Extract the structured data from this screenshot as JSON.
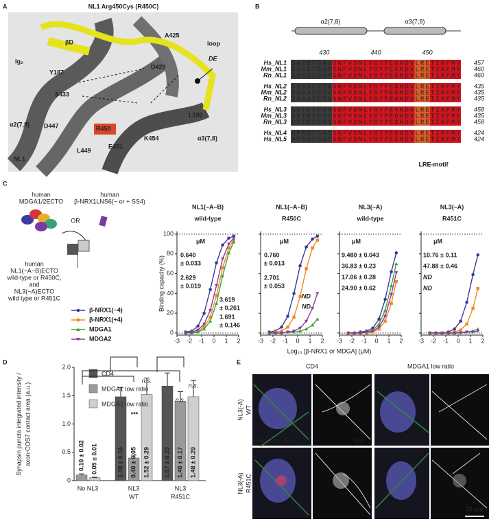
{
  "panel_letters": [
    "A",
    "B",
    "C",
    "D",
    "E"
  ],
  "panel_a": {
    "title": "NL1 Arg450Cys (R450C)",
    "labels": [
      "βD",
      "Ig₂",
      "Y187",
      "D429",
      "A425",
      "loop",
      "DE",
      "S433",
      "L190",
      "α2(7,8)",
      "D447",
      "R450",
      "E451",
      "K454",
      "L449",
      "NL1",
      "α3(7,8)"
    ]
  },
  "panel_b": {
    "helices": [
      "α2(7,8)",
      "α3(7,8)"
    ],
    "positions": [
      430,
      440,
      450
    ],
    "motif": "LRE-motif",
    "rows": [
      {
        "name": "Hs_NL1",
        "sequence": "SASDFDAVSNFVDNLYGYPEGKDVLRETIKFMY",
        "end": 457
      },
      {
        "name": "Mm_NL1",
        "sequence": "SASDFDAVSNFVDNLYGYPEGKDVLRETIKFMY",
        "end": 460
      },
      {
        "name": "Rn_NL1",
        "sequence": "SASDFDAVSNFVDNLYGYPEGKDVLRETIKFMY",
        "end": 460
      },
      {
        "name": "Hs_NL2",
        "sequence": "SASAFDTVSNFVDNLYGYPEGKDVLRETIKFMY",
        "end": 435
      },
      {
        "name": "Mm_NL2",
        "sequence": "SASAFDTVSNFVDNLYGYPEGKDVLRETIKFMY",
        "end": 435
      },
      {
        "name": "Rn_NL2",
        "sequence": "SASAFDTVSNFVDNLYGYPEGKDVLRETIKFMY",
        "end": 435
      },
      {
        "name": "Hs_NL3",
        "sequence": "SGTDFDVSSNFVDNLYGYPEGKDVLRETIKFMY",
        "end": 458
      },
      {
        "name": "Mm_NL3",
        "sequence": "SGTDFDVSSNFVDNLYGYPEGKDVLRETIKFMY",
        "end": 435
      },
      {
        "name": "Rn_NL3",
        "sequence": "SGTDFDVSSNFVDNLYGYPEGKDVLRETIKFMY",
        "end": 458
      },
      {
        "name": "Hs_NL4",
        "sequence": "HPNDFDASSNFVDNLYGYPEGKDVLRETIKFMY",
        "end": 424
      },
      {
        "name": "Hs_NL5",
        "sequence": "HPNDFDASSNFVDNLYGYPEGKDVLRETIKFMY",
        "end": 424
      }
    ]
  },
  "panel_c": {
    "schematic": {
      "ligand_a": [
        "human",
        "MDGA1/2ECTO"
      ],
      "ligand_b": [
        "human",
        "β-NRX1LNS6(− or + SS4)"
      ],
      "or": "OR",
      "receptor": [
        "human",
        "NL1(−A−B)ECTO",
        "wild-type or R450C,",
        "and",
        "NL3(−A)ECTO",
        "wild type or R451C"
      ]
    },
    "y_label": "Binding capacity (%)",
    "x_label": "Log₁₀ [β-NRX1 or MDGA] (μM)",
    "unit": "μM"
  },
  "chart_data": [
    {
      "type": "line",
      "title": [
        "NL1(–A–B)",
        "wild-type"
      ],
      "x": [
        -2.3,
        -1.8,
        -1.3,
        -0.8,
        -0.3,
        0.2,
        0.7,
        1.2,
        1.6
      ],
      "xlim": [
        -3,
        2
      ],
      "xticks": [
        -3,
        -2,
        -1,
        0,
        1,
        2
      ],
      "ylim": [
        0,
        100
      ],
      "yticks": [
        0,
        20,
        40,
        60,
        80,
        100
      ],
      "hlines": [
        0,
        100
      ],
      "series": [
        {
          "name": "β-NRX1(−4)",
          "color": "#3a3a96",
          "values": [
            1,
            2,
            7,
            20,
            44,
            71,
            89,
            96,
            98
          ],
          "kd": [
            "0.640",
            "± 0.033"
          ]
        },
        {
          "name": "β-NRX1(+4)",
          "color": "#ef8a1f",
          "values": [
            0,
            1,
            2,
            6,
            16,
            38,
            66,
            86,
            94
          ],
          "kd": [
            "2.629",
            "± 0.019"
          ]
        },
        {
          "name": "MDGA1",
          "color": "#3aa33a",
          "values": [
            0,
            0,
            1,
            4,
            12,
            30,
            58,
            81,
            92
          ],
          "kd": [
            "3.619",
            "± 0.261"
          ]
        },
        {
          "name": "MDGA2",
          "color": "#8c3a9c",
          "values": [
            0,
            1,
            3,
            9,
            23,
            48,
            75,
            90,
            96
          ],
          "kd": [
            "1.691",
            "± 0.146"
          ]
        }
      ]
    },
    {
      "type": "line",
      "title": [
        "NL1(–A–B)",
        "R450C"
      ],
      "x": [
        -2.3,
        -1.8,
        -1.3,
        -0.8,
        -0.3,
        0.2,
        0.7,
        1.2,
        1.6
      ],
      "xlim": [
        -3,
        2
      ],
      "xticks": [
        -3,
        -2,
        -1,
        0,
        1,
        2
      ],
      "ylim": [
        0,
        100
      ],
      "yticks": [
        0,
        20,
        40,
        60,
        80,
        100
      ],
      "hlines": [
        0,
        100
      ],
      "series": [
        {
          "name": "β-NRX1(−4)",
          "color": "#3a3a96",
          "values": [
            1,
            2,
            6,
            17,
            40,
            68,
            87,
            95,
            98
          ],
          "kd": [
            "0.760",
            "± 0.013"
          ]
        },
        {
          "name": "β-NRX1(+4)",
          "color": "#ef8a1f",
          "values": [
            0,
            1,
            2,
            6,
            16,
            37,
            65,
            86,
            94
          ],
          "kd": [
            "2.701",
            "± 0.053"
          ]
        },
        {
          "name": "MDGA1",
          "color": "#3aa33a",
          "values": [
            0,
            0,
            0,
            1,
            1,
            2,
            4,
            8,
            14
          ],
          "kd": [
            "ND"
          ]
        },
        {
          "name": "MDGA2",
          "color": "#8c3a9c",
          "values": [
            0,
            0,
            0,
            1,
            2,
            5,
            12,
            25,
            40
          ],
          "kd": [
            "ND"
          ]
        }
      ]
    },
    {
      "type": "line",
      "title": [
        "NL3(–A)",
        "wild-type"
      ],
      "x": [
        -2.3,
        -1.8,
        -1.3,
        -0.8,
        -0.3,
        0.2,
        0.7,
        1.2,
        1.6
      ],
      "xlim": [
        -3,
        2
      ],
      "xticks": [
        -3,
        -2,
        -1,
        0,
        1,
        2
      ],
      "ylim": [
        0,
        100
      ],
      "yticks": [
        0,
        20,
        40,
        60,
        80,
        100
      ],
      "hlines": [
        0,
        100
      ],
      "series": [
        {
          "name": "β-NRX1(−4)",
          "color": "#3a3a96",
          "values": [
            0,
            0,
            1,
            2,
            5,
            14,
            34,
            62,
            81
          ],
          "kd": [
            "9.480 ± 0.043"
          ]
        },
        {
          "name": "β-NRX1(+4)",
          "color": "#ef8a1f",
          "values": [
            0,
            0,
            0,
            0,
            1,
            4,
            12,
            30,
            52
          ],
          "kd": [
            "36.83 ± 0.23"
          ]
        },
        {
          "name": "MDGA1",
          "color": "#3aa33a",
          "values": [
            0,
            0,
            0,
            1,
            3,
            9,
            23,
            48,
            70
          ],
          "kd": [
            "17.06 ± 0.28"
          ]
        },
        {
          "name": "MDGA2",
          "color": "#8c3a9c",
          "values": [
            0,
            0,
            0,
            1,
            2,
            6,
            17,
            39,
            61
          ],
          "kd": [
            "24.90 ± 0.62"
          ]
        }
      ]
    },
    {
      "type": "line",
      "title": [
        "NL3(–A)",
        "R451C"
      ],
      "x": [
        -2.3,
        -1.8,
        -1.3,
        -0.8,
        -0.3,
        0.2,
        0.7,
        1.2,
        1.6
      ],
      "xlim": [
        -3,
        2
      ],
      "xticks": [
        -3,
        -2,
        -1,
        0,
        1,
        2
      ],
      "ylim": [
        0,
        100
      ],
      "yticks": [
        0,
        20,
        40,
        60,
        80,
        100
      ],
      "hlines": [
        0,
        100
      ],
      "series": [
        {
          "name": "β-NRX1(−4)",
          "color": "#3a3a96",
          "values": [
            0,
            0,
            0,
            1,
            4,
            12,
            31,
            59,
            79
          ],
          "kd": [
            "10.76 ± 0.11"
          ]
        },
        {
          "name": "β-NRX1(+4)",
          "color": "#ef8a1f",
          "values": [
            0,
            0,
            0,
            0,
            1,
            3,
            9,
            25,
            45
          ],
          "kd": [
            "47.88 ± 0.46"
          ]
        },
        {
          "name": "MDGA1",
          "color": "#3aa33a",
          "values": [
            0,
            0,
            0,
            0,
            0,
            1,
            1,
            2,
            4
          ],
          "kd": [
            "ND"
          ]
        },
        {
          "name": "MDGA2",
          "color": "#8c3a9c",
          "values": [
            0,
            0,
            0,
            0,
            0,
            0,
            1,
            1,
            2
          ],
          "kd": [
            "ND"
          ]
        }
      ]
    },
    {
      "type": "bar",
      "y_label": [
        "Synapsin puncta integrated intensity /",
        "axon-COS7 contact area (a.u.)"
      ],
      "categories": [
        [
          "No NL3"
        ],
        [
          "NL3",
          "WT"
        ],
        [
          "NL3",
          "R451C"
        ]
      ],
      "ylim": [
        0,
        2
      ],
      "yticks": [
        0,
        0.5,
        {
          "value": 1,
          "label": "1.0"
        },
        1.5,
        {
          "value": 2,
          "label": "2.0"
        }
      ],
      "series": [
        {
          "name": "CD4",
          "color": "#555555",
          "values": [
            null,
            1.48,
            1.67
          ],
          "errors": [
            null,
            0.16,
            0.23
          ],
          "value_labels": [
            null,
            "1.48 ± 0.16",
            "1.67 ± 0.23"
          ]
        },
        {
          "name": "MDGA1 low ratio",
          "color": "#9a9a9a",
          "values": [
            0.1,
            0.4,
            1.4
          ],
          "errors": [
            0.02,
            0.05,
            0.17
          ],
          "value_labels": [
            "0.10 ± 0.02",
            "0.40 ± 0.05",
            "1.40 ± 0.17"
          ]
        },
        {
          "name": "MDGA2 low ratio",
          "color": "#cfcfcf",
          "values": [
            0.05,
            1.52,
            1.48
          ],
          "errors": [
            0.01,
            0.29,
            0.29
          ],
          "value_labels": [
            "0.05 ± 0.01",
            "1.52 ± 0.29",
            "1.48 ± 0.29"
          ]
        }
      ],
      "annotations": [
        "***",
        "n.s.",
        "n.s.",
        "n.s."
      ]
    }
  ],
  "panel_e": {
    "columns": [
      "CD4",
      "MDGA1 low ratio"
    ],
    "rows": [
      [
        "NL3(-A)",
        "WT"
      ],
      [
        "NL3(-A)",
        "R451C"
      ]
    ],
    "channels": [
      "Myc",
      "Tau",
      "Syn"
    ],
    "syn": "Syn",
    "scale": "30 μm"
  }
}
